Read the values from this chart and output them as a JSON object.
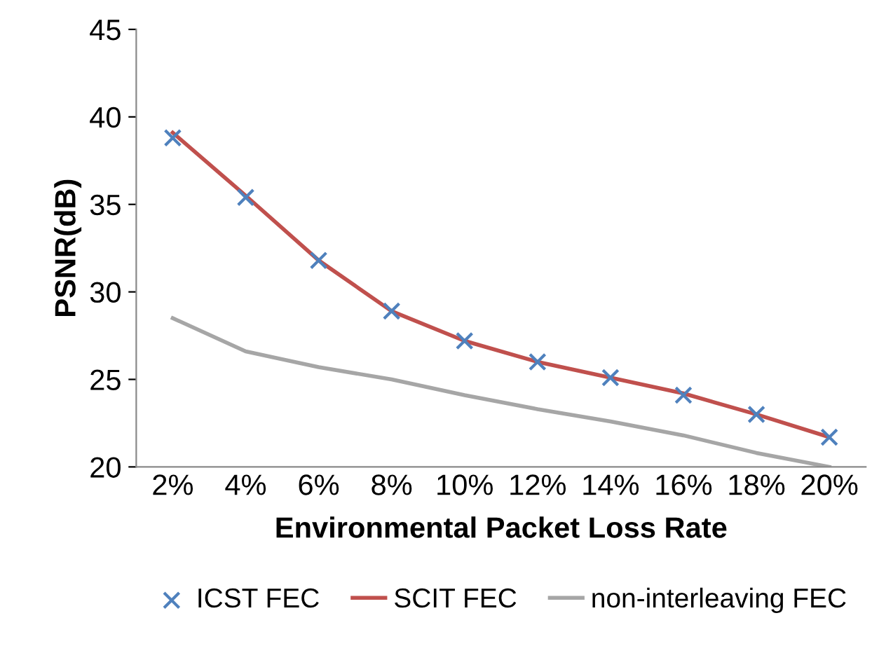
{
  "chart_data": {
    "type": "line",
    "xlabel": "Environmental Packet Loss Rate",
    "ylabel": "PSNR(dB)",
    "categories": [
      "2%",
      "4%",
      "6%",
      "8%",
      "10%",
      "12%",
      "14%",
      "16%",
      "18%",
      "20%"
    ],
    "ylim": [
      20,
      45
    ],
    "yticks": [
      20,
      25,
      30,
      35,
      40,
      45
    ],
    "grid": false,
    "legend": "bottom",
    "series": [
      {
        "name": "ICST FEC",
        "type": "scatter",
        "marker": "cross",
        "color": "#4f81bd",
        "values": [
          38.8,
          35.4,
          31.8,
          28.9,
          27.2,
          26.0,
          25.1,
          24.1,
          23.0,
          21.7
        ]
      },
      {
        "name": "SCIT FEC",
        "marker": "none",
        "color": "#c0504d",
        "values": [
          39.1,
          35.5,
          31.8,
          28.9,
          27.2,
          26.0,
          25.1,
          24.2,
          23.0,
          21.7
        ]
      },
      {
        "name": "non-interleaving FEC",
        "marker": "none",
        "color": "#a6a6a6",
        "values": [
          28.5,
          26.6,
          25.7,
          25.0,
          24.1,
          23.3,
          22.6,
          21.8,
          20.8,
          20.0
        ]
      }
    ]
  }
}
